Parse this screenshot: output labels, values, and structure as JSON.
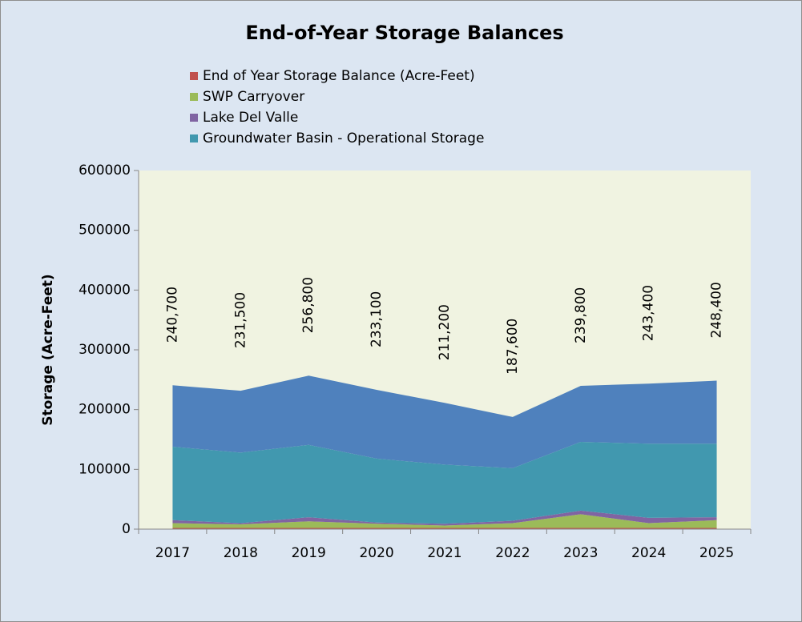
{
  "chart_data": {
    "type": "stacked_area",
    "title": "End-of-Year Storage Balances",
    "y_label": "Storage (Acre-Feet)",
    "categories": [
      "2017",
      "2018",
      "2019",
      "2020",
      "2021",
      "2022",
      "2023",
      "2024",
      "2025"
    ],
    "series": [
      {
        "name": "End of Year Storage Balance (Acre-Feet)",
        "color": "#c0504d",
        "values": [
          2000,
          2000,
          2000,
          2000,
          2000,
          2000,
          2000,
          2000,
          2000
        ]
      },
      {
        "name": "SWP Carryover",
        "color": "#9bbb59",
        "values": [
          8000,
          6000,
          11000,
          7000,
          4000,
          8000,
          23000,
          8000,
          13000
        ]
      },
      {
        "name": "Lake Del Valle",
        "color": "#8064a2",
        "values": [
          5000,
          2000,
          7000,
          2000,
          3000,
          4000,
          6000,
          9000,
          5000
        ]
      },
      {
        "name": "Groundwater Basin - Operational Storage",
        "color": "#4198af",
        "values": [
          123000,
          118000,
          121000,
          107000,
          99000,
          88000,
          115000,
          124000,
          123000
        ]
      },
      {
        "color": "#4f81bd",
        "values": [
          102700,
          103500,
          115800,
          115100,
          103200,
          85600,
          93800,
          100400,
          105400
        ]
      }
    ],
    "totals": {
      "values": [
        240700,
        231500,
        256800,
        233100,
        211200,
        187600,
        239800,
        243400,
        248400
      ],
      "value_labels": [
        "240,700",
        "231,500",
        "256,800",
        "233,100",
        "211,200",
        "187,600",
        "239,800",
        "243,400",
        "248,400"
      ]
    },
    "ylim": [
      0,
      600000
    ],
    "yticks": [
      0,
      100000,
      200000,
      300000,
      400000,
      500000,
      600000
    ]
  }
}
